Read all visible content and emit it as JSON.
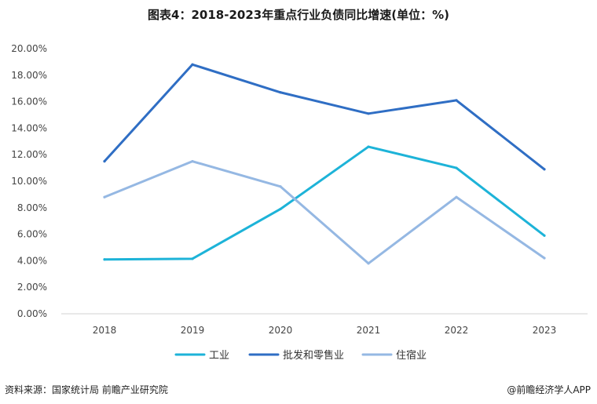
{
  "chart_data": {
    "type": "line",
    "title": "图表4：2018-2023年重点行业负债同比增速(单位：%)",
    "x": [
      "2018",
      "2019",
      "2020",
      "2021",
      "2022",
      "2023"
    ],
    "ylim": [
      0,
      20
    ],
    "yticks": [
      "0.00%",
      "2.00%",
      "4.00%",
      "6.00%",
      "8.00%",
      "10.00%",
      "12.00%",
      "14.00%",
      "16.00%",
      "18.00%",
      "20.00%"
    ],
    "grid": false,
    "legend_position": "bottom",
    "series": [
      {
        "name": "工业",
        "color": "#1db3d8",
        "values": [
          4.1,
          4.15,
          7.9,
          12.6,
          11.0,
          5.9
        ]
      },
      {
        "name": "批发和零售业",
        "color": "#2f6ec4",
        "values": [
          11.5,
          18.8,
          16.7,
          15.1,
          16.1,
          10.9
        ]
      },
      {
        "name": "住宿业",
        "color": "#95b8e3",
        "values": [
          8.8,
          11.5,
          9.6,
          3.8,
          8.8,
          4.2
        ]
      }
    ]
  },
  "footer": {
    "source": "资料来源：国家统计局 前瞻产业研究院",
    "credit": "@前瞻经济学人APP"
  }
}
